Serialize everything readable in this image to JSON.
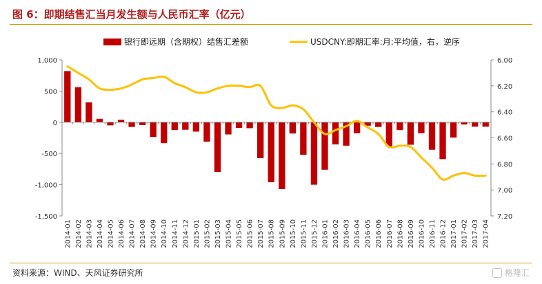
{
  "header": {
    "title": "图 6：即期结售汇当月发生额与人民币汇率（亿元）"
  },
  "footer": {
    "source": "资料来源：WIND、天风证券研究所",
    "watermark": "格隆汇"
  },
  "colors": {
    "bar": "#c00000",
    "line": "#ffc000",
    "title": "#b01e1e",
    "rule": "#c8a000"
  },
  "chart_data": {
    "type": "bar+line",
    "categories": [
      "2014-01",
      "2014-02",
      "2014-03",
      "2014-04",
      "2014-05",
      "2014-06",
      "2014-07",
      "2014-08",
      "2014-09",
      "2014-10",
      "2014-11",
      "2014-12",
      "2015-01",
      "2015-02",
      "2015-03",
      "2015-04",
      "2015-05",
      "2015-06",
      "2015-07",
      "2015-08",
      "2015-09",
      "2015-10",
      "2015-11",
      "2015-12",
      "2016-01",
      "2016-02",
      "2016-03",
      "2016-04",
      "2016-05",
      "2016-06",
      "2016-07",
      "2016-08",
      "2016-09",
      "2016-10",
      "2016-11",
      "2016-12",
      "2017-01",
      "2017-02",
      "2017-03",
      "2017-04"
    ],
    "x_tick_labels": [
      "2014-01",
      "2014-02",
      "2014-03",
      "2014-04",
      "2014-05",
      "2014-06",
      "2014-07",
      "2014-08",
      "2014-09",
      "2014-10",
      "2014-11",
      "2014-12",
      "2015-01",
      "2015-02",
      "2015-03",
      "2015-04",
      "2015-05",
      "2015-06",
      "2015-07",
      "2015-08",
      "2015-09",
      "2015-10",
      "2015-11",
      "2015-12",
      "2016-01",
      "2016-02",
      "2016-03",
      "2016-04",
      "2016-05",
      "2016-06",
      "2016-07",
      "2016-08",
      "2016-09",
      "2016-10",
      "2016-11",
      "2016-12",
      "2017-01",
      "2017-02",
      "2017-03",
      "2017-04"
    ],
    "series": [
      {
        "name": "银行即远期（含期权）结售汇差额",
        "axis": "left",
        "kind": "bar",
        "values": [
          820,
          560,
          320,
          55,
          -50,
          40,
          -75,
          -45,
          -235,
          -335,
          -125,
          -120,
          -150,
          -310,
          -795,
          -195,
          -90,
          -95,
          -575,
          -960,
          -1070,
          -180,
          -520,
          -1000,
          -760,
          -355,
          -375,
          -175,
          -55,
          -75,
          -385,
          -125,
          -360,
          -175,
          -440,
          -590,
          -245,
          -35,
          -70,
          -70
        ]
      },
      {
        "name": "USDCNY:即期汇率:月:平均值，右，逆序",
        "axis": "right",
        "kind": "line",
        "values": [
          6.05,
          6.1,
          6.15,
          6.22,
          6.23,
          6.22,
          6.19,
          6.15,
          6.14,
          6.13,
          6.18,
          6.21,
          6.25,
          6.25,
          6.22,
          6.2,
          6.2,
          6.21,
          6.2,
          6.35,
          6.37,
          6.35,
          6.38,
          6.48,
          6.57,
          6.54,
          6.51,
          6.47,
          6.52,
          6.57,
          6.67,
          6.66,
          6.67,
          6.75,
          6.83,
          6.92,
          6.89,
          6.87,
          6.89,
          6.89
        ]
      }
    ],
    "y_left": {
      "min": -1500,
      "max": 1000,
      "ticks": [
        1000,
        500,
        0,
        -500,
        -1000,
        -1500
      ],
      "tick_labels": [
        "1,000",
        "500",
        "0",
        "-500",
        "-1,000",
        "-1,500"
      ]
    },
    "y_right": {
      "min": 6.0,
      "max": 7.2,
      "reversed": true,
      "ticks": [
        6.0,
        6.2,
        6.4,
        6.6,
        6.8,
        7.0,
        7.2
      ],
      "tick_labels": [
        "6.00",
        "6.20",
        "6.40",
        "6.60",
        "6.80",
        "7.00",
        "7.20"
      ]
    },
    "legend": {
      "position": "top"
    },
    "grid": false
  }
}
